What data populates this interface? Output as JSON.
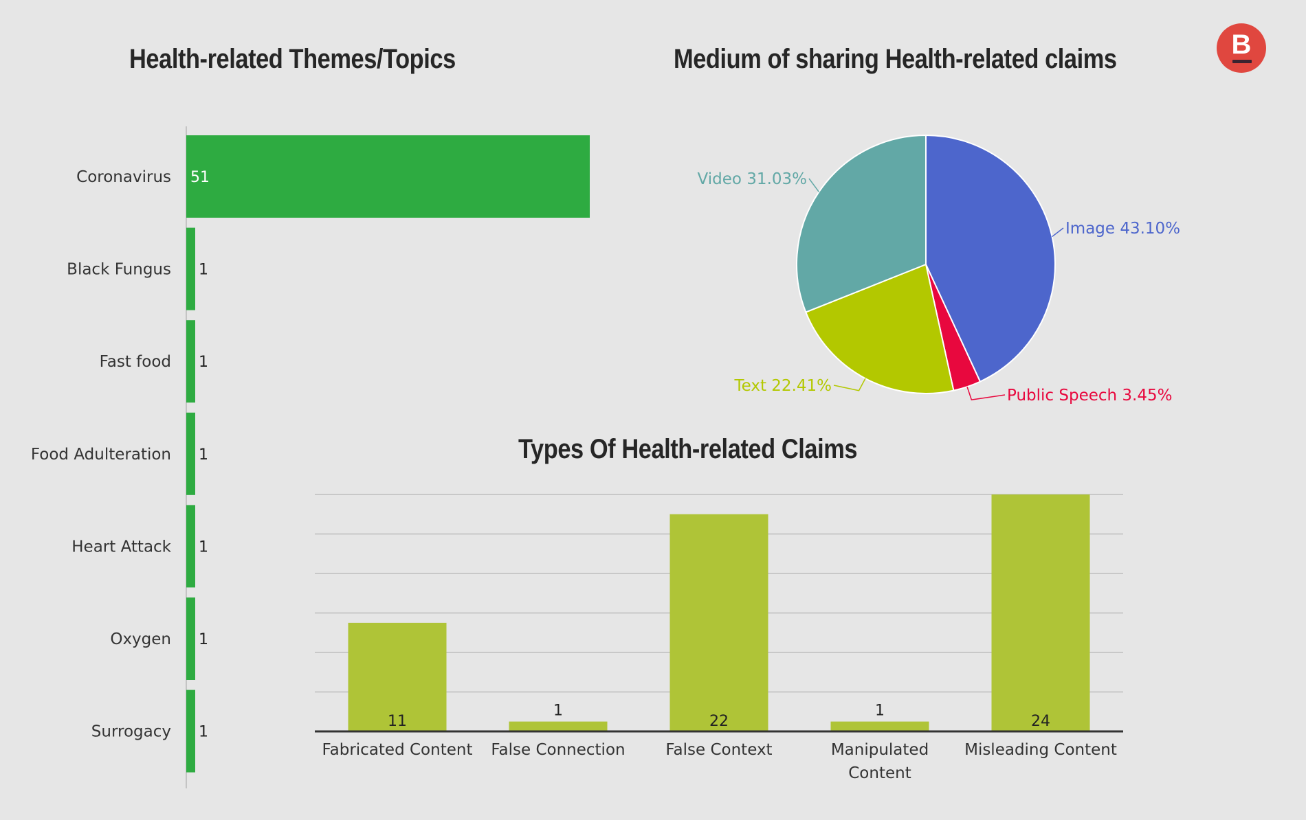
{
  "brand": {
    "logo_letter": "B"
  },
  "colors": {
    "topics_bar": "#2eab41",
    "types_bar": "#afc437",
    "image": "#4d66cc",
    "public_speech": "#e8083e",
    "text": "#b3c800",
    "video": "#62a8a6"
  },
  "chart_data": [
    {
      "type": "bar",
      "orientation": "horizontal",
      "title": "Health-related Themes/Topics",
      "categories": [
        "Coronavirus",
        "Black Fungus",
        "Fast food",
        "Food Adulteration",
        "Heart Attack",
        "Oxygen",
        "Surrogacy"
      ],
      "values": [
        51,
        1,
        1,
        1,
        1,
        1,
        1
      ],
      "data_labels": [
        "51",
        "1",
        "1",
        "1",
        "1",
        "1",
        "1"
      ],
      "xlim": [
        0,
        51
      ],
      "grid": false
    },
    {
      "type": "pie",
      "title": "Medium of sharing Health-related claims",
      "slices": [
        {
          "label": "Image",
          "value": 43.1,
          "display": "Image 43.10%"
        },
        {
          "label": "Public Speech",
          "value": 3.45,
          "display": "Public Speech 3.45%"
        },
        {
          "label": "Text",
          "value": 22.41,
          "display": "Text 22.41%"
        },
        {
          "label": "Video",
          "value": 31.03,
          "display": "Video 31.03%"
        }
      ]
    },
    {
      "type": "bar",
      "title": "Types Of Health-related Claims",
      "categories": [
        "Fabricated Content",
        "False Connection",
        "False Context",
        "Manipulated Content",
        "Misleading Content"
      ],
      "category_lines": [
        [
          "Fabricated Content"
        ],
        [
          "False Connection"
        ],
        [
          "False Context"
        ],
        [
          "Manipulated",
          "Content"
        ],
        [
          "Misleading Content"
        ]
      ],
      "values": [
        11,
        1,
        22,
        1,
        24
      ],
      "data_labels": [
        "11",
        "1",
        "22",
        "1",
        "24"
      ],
      "ylim": [
        0,
        24
      ],
      "grid": true
    }
  ]
}
